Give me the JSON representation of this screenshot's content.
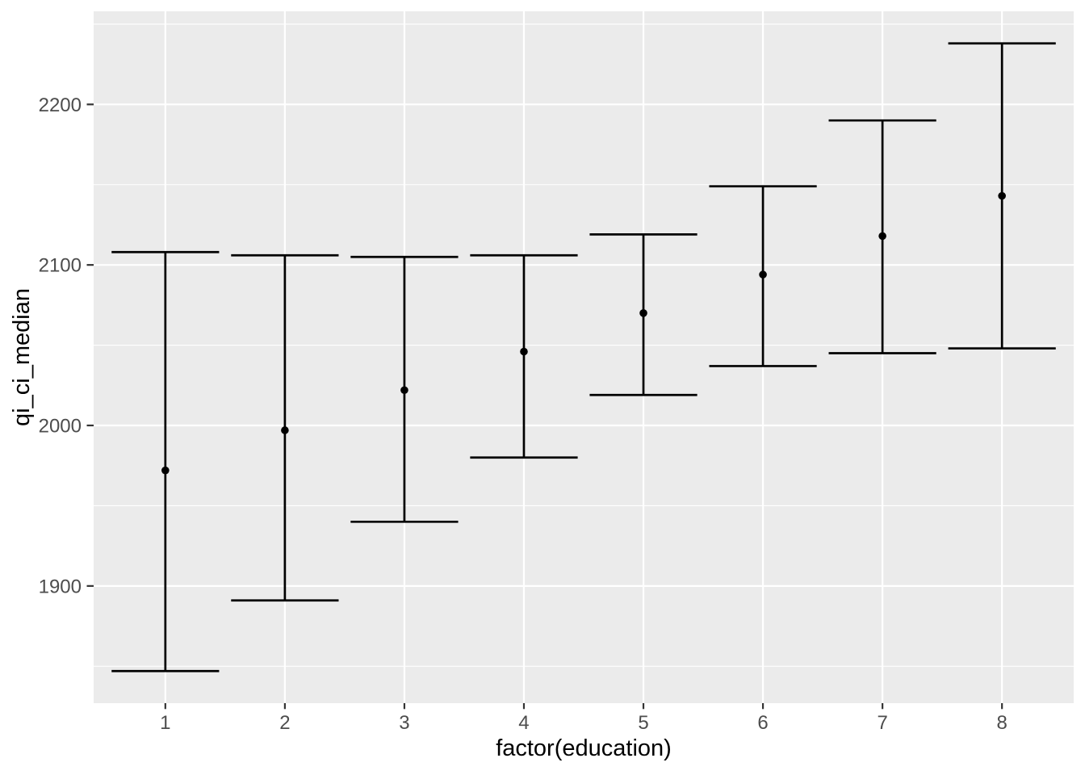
{
  "chart_data": {
    "type": "pointrange",
    "title": "",
    "xlabel": "factor(education)",
    "ylabel": "qi_ci_median",
    "categories": [
      "1",
      "2",
      "3",
      "4",
      "5",
      "6",
      "7",
      "8"
    ],
    "series": [
      {
        "name": "qi_ci_median",
        "medians": [
          1972,
          1997,
          2022,
          2046,
          2070,
          2094,
          2118,
          2143
        ],
        "ci_low": [
          1847,
          1891,
          1940,
          1980,
          2019,
          2037,
          2045,
          2048
        ],
        "ci_high": [
          2108,
          2106,
          2105,
          2106,
          2119,
          2149,
          2190,
          2238
        ]
      }
    ],
    "ylim": [
      1827,
      2258
    ],
    "y_ticks": [
      1900,
      2000,
      2100,
      2200
    ],
    "y_minor_ticks": [
      1850,
      1950,
      2050,
      2150,
      2250
    ],
    "x_ticks": [
      "1",
      "2",
      "3",
      "4",
      "5",
      "6",
      "7",
      "8"
    ],
    "grid": true,
    "legend": "none",
    "colors": {
      "page_background": "#FFFFFF",
      "panel_background": "#EBEBEB",
      "gridline": "#FFFFFF",
      "data": "#000000",
      "tick_label": "#4D4D4D",
      "tick_mark": "#333333",
      "axis_title": "#000000"
    }
  }
}
